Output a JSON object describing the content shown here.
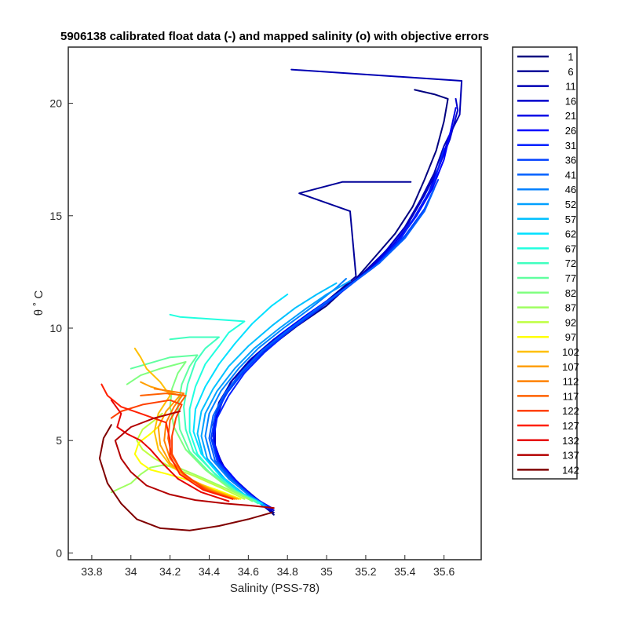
{
  "chart_data": {
    "type": "line",
    "title": "5906138 calibrated float data (-) and mapped salinity (o) with objective errors",
    "xlabel": "Salinity (PSS-78)",
    "ylabel": "θ ˚ C",
    "xlim": [
      33.68,
      35.79
    ],
    "ylim": [
      -0.3,
      22.5
    ],
    "xticks": [
      33.8,
      34,
      34.2,
      34.4,
      34.6,
      34.8,
      35,
      35.2,
      35.4,
      35.6
    ],
    "xtick_labels": [
      "33.8",
      "34",
      "34.2",
      "34.4",
      "34.6",
      "34.8",
      "35",
      "35.2",
      "35.4",
      "35.6"
    ],
    "yticks": [
      0,
      5,
      10,
      15,
      20
    ],
    "ytick_labels": [
      "0",
      "5",
      "10",
      "15",
      "20"
    ],
    "grid": false,
    "legend_position": "outside-right",
    "colormap": "jet",
    "series": [
      {
        "name": "1",
        "color": "#000080",
        "x": [
          34.73,
          34.68,
          34.6,
          34.5,
          34.44,
          34.42,
          34.44,
          34.5,
          34.58,
          34.7,
          34.85,
          35.0,
          35.15,
          35.25,
          35.35,
          35.44,
          35.5,
          35.56,
          35.6,
          35.62,
          35.55,
          35.45
        ],
        "y": [
          1.7,
          2.1,
          2.6,
          3.3,
          4.2,
          5.2,
          6.3,
          7.3,
          8.2,
          9.1,
          10.1,
          11.0,
          12.2,
          13.2,
          14.2,
          15.4,
          16.6,
          17.9,
          19.2,
          20.2,
          20.4,
          20.6
        ]
      },
      {
        "name": "6",
        "color": "#000099",
        "x": [
          34.73,
          34.67,
          34.59,
          34.49,
          34.43,
          34.42,
          34.45,
          34.51,
          34.6,
          34.72,
          34.86,
          35.0,
          35.15,
          35.12,
          34.86,
          35.08,
          35.43
        ],
        "y": [
          1.8,
          2.2,
          2.8,
          3.6,
          4.6,
          5.6,
          6.6,
          7.6,
          8.5,
          9.4,
          10.3,
          11.2,
          12.3,
          15.2,
          16.0,
          16.5,
          16.5
        ]
      },
      {
        "name": "11",
        "color": "#0000b3",
        "x": [
          34.72,
          34.66,
          34.58,
          34.48,
          34.43,
          34.42,
          34.45,
          34.52,
          34.61,
          34.73,
          34.87,
          35.02,
          35.18,
          35.3,
          35.4,
          35.48,
          35.55,
          35.6,
          35.68,
          35.69,
          34.82
        ],
        "y": [
          1.8,
          2.2,
          2.8,
          3.7,
          4.7,
          5.7,
          6.7,
          7.7,
          8.6,
          9.5,
          10.4,
          11.3,
          12.4,
          13.4,
          14.5,
          15.7,
          16.9,
          18.1,
          19.5,
          21.0,
          21.5
        ]
      },
      {
        "name": "16",
        "color": "#0000cc",
        "x": [
          34.73,
          34.66,
          34.57,
          34.47,
          34.43,
          34.43,
          34.47,
          34.54,
          34.63,
          34.75,
          34.89,
          35.04,
          35.2,
          35.32,
          35.42,
          35.5,
          35.57,
          35.63,
          35.67,
          35.66
        ],
        "y": [
          1.9,
          2.3,
          2.9,
          3.8,
          4.8,
          5.8,
          6.8,
          7.8,
          8.7,
          9.6,
          10.5,
          11.4,
          12.5,
          13.6,
          14.7,
          15.9,
          17.1,
          18.4,
          19.7,
          20.2
        ]
      },
      {
        "name": "21",
        "color": "#0000e6",
        "x": [
          34.72,
          34.65,
          34.56,
          34.46,
          34.42,
          34.43,
          34.47,
          34.55,
          34.64,
          34.76,
          34.9,
          35.05,
          35.22,
          35.34,
          35.44,
          35.52,
          35.58,
          35.63,
          35.66
        ],
        "y": [
          1.9,
          2.3,
          3.0,
          3.9,
          4.9,
          5.9,
          6.9,
          7.9,
          8.8,
          9.7,
          10.6,
          11.5,
          12.6,
          13.7,
          14.8,
          16.0,
          17.3,
          18.6,
          19.8
        ]
      },
      {
        "name": "26",
        "color": "#0000ff",
        "x": [
          34.72,
          34.64,
          34.55,
          34.46,
          34.42,
          34.43,
          34.48,
          34.56,
          34.66,
          34.78,
          34.92,
          35.07,
          35.24,
          35.36,
          35.46,
          35.54,
          35.6,
          35.64
        ],
        "y": [
          2.0,
          2.4,
          3.1,
          4.0,
          5.0,
          6.0,
          7.0,
          8.0,
          8.9,
          9.8,
          10.7,
          11.6,
          12.7,
          13.8,
          15.0,
          16.2,
          17.5,
          19.0
        ]
      },
      {
        "name": "31",
        "color": "#0020ff",
        "x": [
          34.71,
          34.63,
          34.54,
          34.45,
          34.42,
          34.44,
          34.5,
          34.58,
          34.68,
          34.8,
          34.94,
          35.09,
          35.25,
          35.38,
          35.47,
          35.55,
          35.6
        ],
        "y": [
          2.0,
          2.4,
          3.1,
          4.0,
          5.0,
          6.0,
          7.0,
          8.0,
          8.9,
          9.8,
          10.7,
          11.7,
          12.8,
          14.0,
          15.2,
          16.5,
          18.0
        ]
      },
      {
        "name": "36",
        "color": "#0040ff",
        "x": [
          34.71,
          34.62,
          34.53,
          34.44,
          34.41,
          34.43,
          34.49,
          34.58,
          34.68,
          34.81,
          34.95,
          35.1,
          35.27,
          35.4,
          35.5,
          35.57
        ],
        "y": [
          2.0,
          2.5,
          3.2,
          4.1,
          5.1,
          6.1,
          7.1,
          8.1,
          9.0,
          9.9,
          10.8,
          11.8,
          12.9,
          14.1,
          15.3,
          16.6
        ]
      },
      {
        "name": "41",
        "color": "#0060ff",
        "x": [
          34.7,
          34.61,
          34.52,
          34.43,
          34.4,
          34.42,
          34.48,
          34.57,
          34.67,
          34.8,
          34.94,
          35.1,
          35.27,
          35.4,
          35.5,
          35.55
        ],
        "y": [
          2.0,
          2.5,
          3.2,
          4.1,
          5.1,
          6.1,
          7.1,
          8.1,
          9.0,
          9.9,
          10.8,
          11.8,
          12.9,
          14.0,
          15.2,
          16.2
        ]
      },
      {
        "name": "46",
        "color": "#0080ff",
        "x": [
          34.69,
          34.6,
          34.5,
          34.41,
          34.38,
          34.4,
          34.46,
          34.55,
          34.65,
          34.78,
          34.92,
          35.05,
          35.1
        ],
        "y": [
          2.1,
          2.6,
          3.3,
          4.2,
          5.2,
          6.2,
          7.2,
          8.2,
          9.1,
          10.0,
          10.9,
          11.8,
          12.2
        ]
      },
      {
        "name": "52",
        "color": "#00a0ff",
        "x": [
          34.68,
          34.58,
          34.48,
          34.39,
          34.36,
          34.38,
          34.44,
          34.53,
          34.63,
          34.76,
          34.9,
          35.0,
          35.12
        ],
        "y": [
          2.1,
          2.6,
          3.3,
          4.2,
          5.2,
          6.2,
          7.2,
          8.2,
          9.1,
          10.0,
          10.9,
          11.5,
          12.1
        ]
      },
      {
        "name": "57",
        "color": "#00c0ff",
        "x": [
          34.68,
          34.57,
          34.46,
          34.37,
          34.34,
          34.36,
          34.42,
          34.5,
          34.6,
          34.72,
          34.84,
          34.95,
          35.05
        ],
        "y": [
          2.1,
          2.6,
          3.4,
          4.3,
          5.3,
          6.3,
          7.3,
          8.3,
          9.2,
          10.1,
          10.9,
          11.5,
          12.0
        ]
      },
      {
        "name": "62",
        "color": "#00e0ff",
        "x": [
          34.67,
          34.56,
          34.45,
          34.36,
          34.32,
          34.33,
          34.38,
          34.45,
          34.53,
          34.62,
          34.72,
          34.8
        ],
        "y": [
          2.2,
          2.7,
          3.5,
          4.4,
          5.4,
          6.4,
          7.4,
          8.4,
          9.3,
          10.2,
          11.0,
          11.5
        ]
      },
      {
        "name": "67",
        "color": "#20ffdf",
        "x": [
          34.66,
          34.54,
          34.43,
          34.34,
          34.3,
          34.3,
          34.33,
          34.38,
          34.45,
          34.5,
          34.58,
          34.25,
          34.2
        ],
        "y": [
          2.2,
          2.7,
          3.5,
          4.4,
          5.4,
          6.4,
          7.4,
          8.4,
          9.2,
          9.8,
          10.3,
          10.5,
          10.6
        ]
      },
      {
        "name": "72",
        "color": "#40ffbf",
        "x": [
          34.65,
          34.53,
          34.42,
          34.32,
          34.28,
          34.27,
          34.29,
          34.33,
          34.38,
          34.45,
          34.3,
          34.2
        ],
        "y": [
          2.2,
          2.8,
          3.6,
          4.5,
          5.5,
          6.5,
          7.5,
          8.5,
          9.1,
          9.6,
          9.6,
          9.5
        ]
      },
      {
        "name": "77",
        "color": "#60ff9f",
        "x": [
          34.64,
          34.52,
          34.4,
          34.3,
          34.25,
          34.24,
          34.26,
          34.3,
          34.34,
          34.2,
          34.08,
          34.0
        ],
        "y": [
          2.3,
          2.8,
          3.6,
          4.5,
          5.5,
          6.5,
          7.5,
          8.3,
          8.8,
          8.7,
          8.4,
          8.2
        ]
      },
      {
        "name": "82",
        "color": "#80ff80",
        "x": [
          34.62,
          34.5,
          34.38,
          34.28,
          34.22,
          34.2,
          34.21,
          34.24,
          34.28,
          34.15,
          34.05,
          33.98
        ],
        "y": [
          2.3,
          2.9,
          3.7,
          4.6,
          5.6,
          6.5,
          7.3,
          8.0,
          8.5,
          8.2,
          7.9,
          7.5
        ]
      },
      {
        "name": "87",
        "color": "#9fff60",
        "x": [
          34.6,
          34.48,
          34.35,
          34.24,
          34.16,
          34.1,
          34.05,
          34.0,
          33.95,
          33.9
        ],
        "y": [
          2.4,
          2.9,
          3.4,
          3.8,
          3.9,
          3.8,
          3.5,
          3.1,
          2.9,
          2.7
        ]
      },
      {
        "name": "92",
        "color": "#bfff40",
        "x": [
          34.58,
          34.46,
          34.33,
          34.21,
          34.12,
          34.06,
          34.03,
          34.06,
          34.12,
          34.16
        ],
        "y": [
          2.4,
          2.9,
          3.4,
          3.8,
          4.2,
          4.6,
          5.0,
          5.5,
          5.9,
          6.2
        ]
      },
      {
        "name": "97",
        "color": "#ffff00",
        "x": [
          34.56,
          34.44,
          34.31,
          34.19,
          34.1,
          34.05,
          34.02,
          34.04,
          34.1,
          34.15
        ],
        "y": [
          2.4,
          2.8,
          3.2,
          3.5,
          3.7,
          4.0,
          4.4,
          4.9,
          5.3,
          5.7
        ]
      },
      {
        "name": "102",
        "color": "#ffbf00",
        "x": [
          34.55,
          34.42,
          34.3,
          34.2,
          34.14,
          34.12,
          34.14,
          34.2,
          34.15,
          34.08,
          34.05,
          34.02
        ],
        "y": [
          2.4,
          2.8,
          3.3,
          3.9,
          4.6,
          5.4,
          6.2,
          7.0,
          7.6,
          8.2,
          8.7,
          9.1
        ]
      },
      {
        "name": "107",
        "color": "#ff9f00",
        "x": [
          34.54,
          34.41,
          34.29,
          34.2,
          34.15,
          34.14,
          34.18,
          34.25,
          34.18,
          34.1,
          34.05
        ],
        "y": [
          2.4,
          2.8,
          3.3,
          4.0,
          4.8,
          5.6,
          6.3,
          7.0,
          7.2,
          7.4,
          7.6
        ]
      },
      {
        "name": "112",
        "color": "#ff8000",
        "x": [
          34.53,
          34.4,
          34.28,
          34.2,
          34.17,
          34.18,
          34.22,
          34.27,
          34.2,
          34.12
        ],
        "y": [
          2.4,
          2.8,
          3.4,
          4.2,
          5.0,
          5.8,
          6.5,
          7.1,
          7.2,
          7.3
        ]
      },
      {
        "name": "117",
        "color": "#ff6000",
        "x": [
          34.52,
          34.39,
          34.27,
          34.21,
          34.19,
          34.2,
          34.24,
          34.28,
          34.18,
          34.05
        ],
        "y": [
          2.4,
          2.8,
          3.5,
          4.3,
          5.1,
          5.9,
          6.5,
          7.0,
          7.1,
          7.0
        ]
      },
      {
        "name": "122",
        "color": "#ff4000",
        "x": [
          34.52,
          34.38,
          34.26,
          34.21,
          34.21,
          34.23,
          34.26,
          34.2,
          34.06,
          33.95,
          33.9
        ],
        "y": [
          2.4,
          2.8,
          3.6,
          4.4,
          5.2,
          6.0,
          6.6,
          6.8,
          6.6,
          6.3,
          6.0
        ]
      },
      {
        "name": "127",
        "color": "#ff2000",
        "x": [
          34.52,
          34.37,
          34.25,
          34.2,
          34.2,
          34.18,
          34.05,
          33.95,
          33.88,
          33.85
        ],
        "y": [
          2.4,
          2.8,
          3.5,
          4.3,
          5.0,
          5.8,
          6.2,
          6.5,
          7.0,
          7.5
        ]
      },
      {
        "name": "132",
        "color": "#e60000",
        "x": [
          34.5,
          34.36,
          34.24,
          34.16,
          34.1,
          34.05,
          33.98,
          33.93,
          33.95,
          33.9
        ],
        "y": [
          2.3,
          2.7,
          3.3,
          4.0,
          4.6,
          5.0,
          5.3,
          5.6,
          6.2,
          6.8
        ]
      },
      {
        "name": "137",
        "color": "#b30000",
        "x": [
          34.73,
          34.62,
          34.48,
          34.33,
          34.2,
          34.08,
          34.0,
          33.95,
          33.92,
          34.0,
          34.12,
          34.25
        ],
        "y": [
          2.0,
          2.1,
          2.2,
          2.35,
          2.6,
          3.0,
          3.6,
          4.2,
          5.0,
          5.6,
          6.0,
          6.3
        ]
      },
      {
        "name": "142",
        "color": "#800000",
        "x": [
          34.72,
          34.6,
          34.45,
          34.3,
          34.15,
          34.03,
          33.95,
          33.88,
          33.84,
          33.86,
          33.9
        ],
        "y": [
          1.8,
          1.5,
          1.2,
          1.0,
          1.1,
          1.5,
          2.2,
          3.1,
          4.2,
          5.1,
          5.7
        ]
      }
    ]
  }
}
